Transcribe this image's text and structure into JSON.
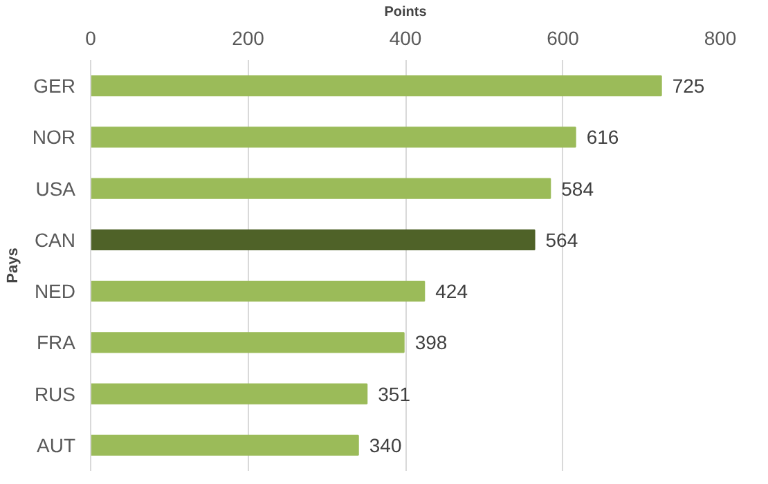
{
  "chart_data": {
    "type": "bar",
    "orientation": "horizontal",
    "xlabel": "Points",
    "ylabel": "Pays",
    "categories": [
      "GER",
      "NOR",
      "USA",
      "CAN",
      "NED",
      "FRA",
      "RUS",
      "AUT"
    ],
    "values": [
      725,
      616,
      584,
      564,
      424,
      398,
      351,
      340
    ],
    "colors": [
      "#9bbb59",
      "#9bbb59",
      "#9bbb59",
      "#4f6228",
      "#9bbb59",
      "#9bbb59",
      "#9bbb59",
      "#9bbb59"
    ],
    "xlim": [
      0,
      800
    ],
    "xticks": [
      0,
      200,
      400,
      600,
      800
    ],
    "grid": "x",
    "data_labels": true
  }
}
